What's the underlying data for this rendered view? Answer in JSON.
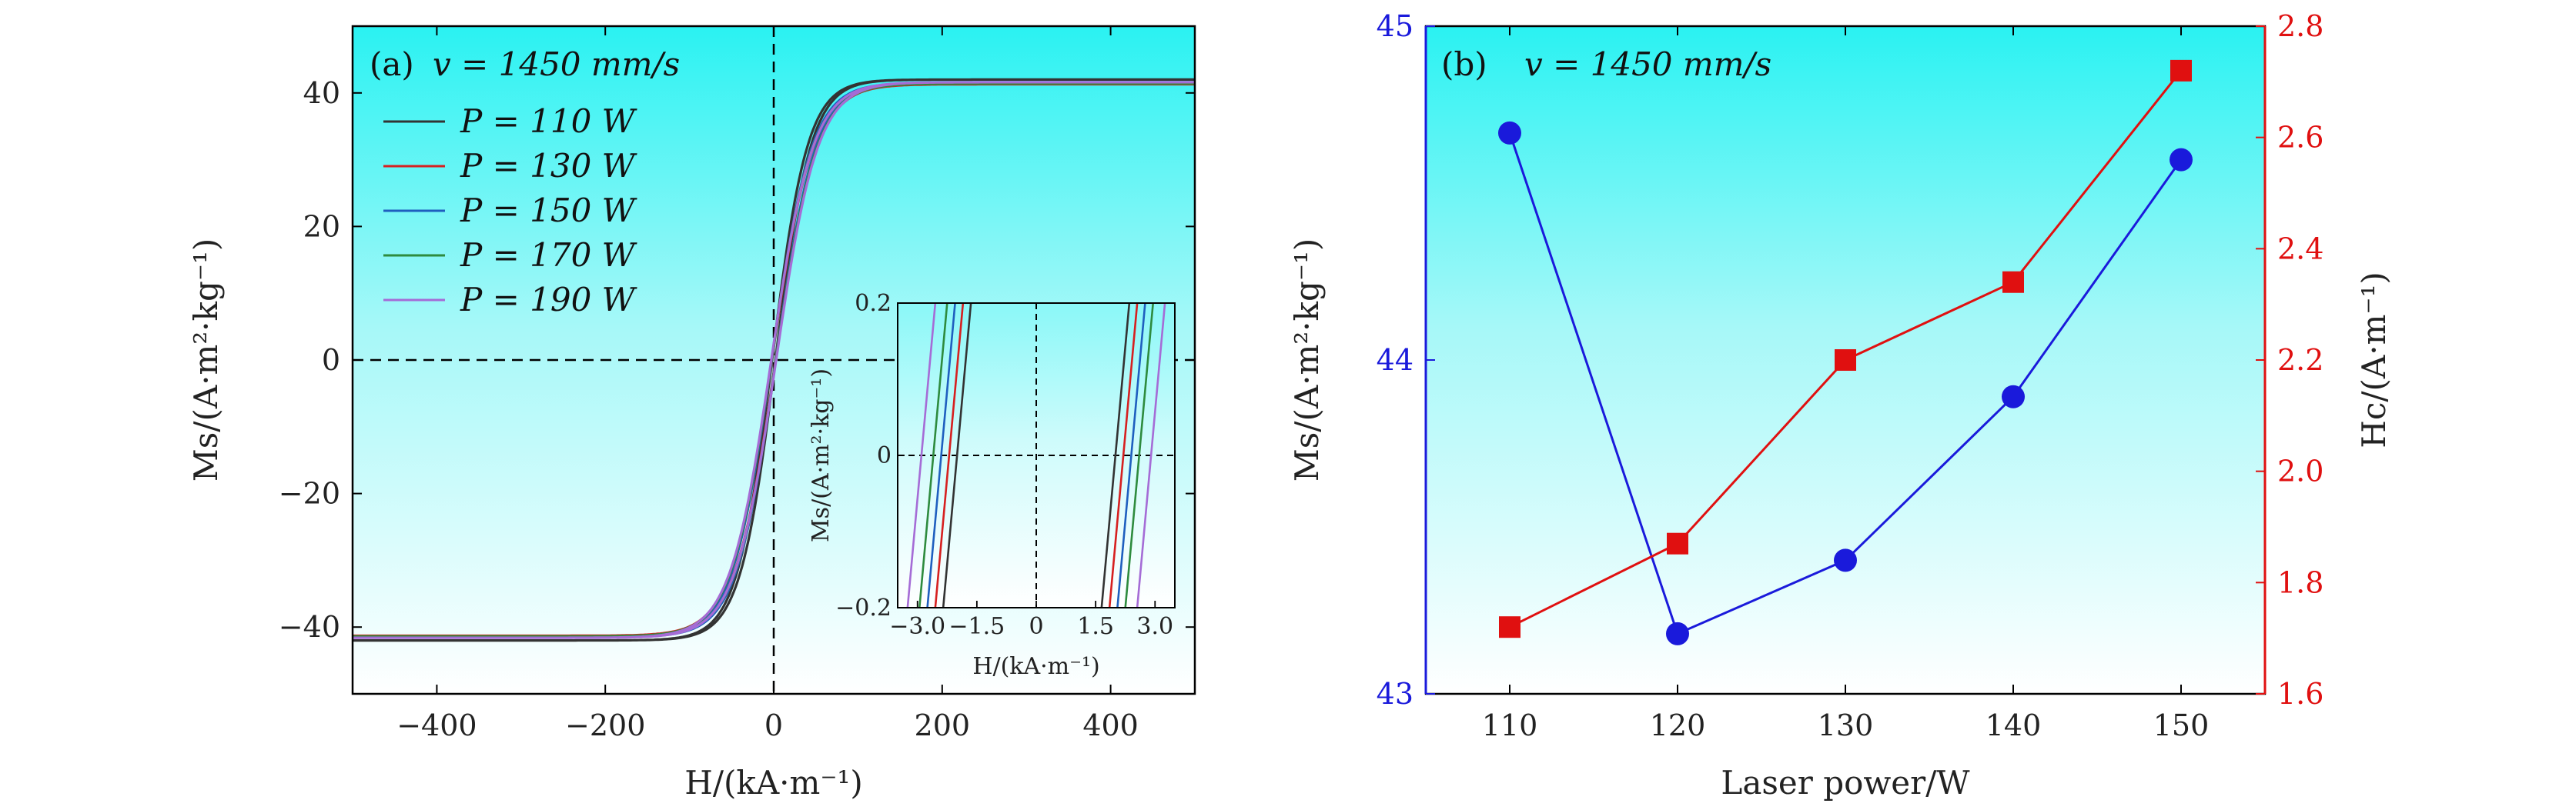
{
  "chart_data": [
    {
      "panel": "(a)",
      "type": "line",
      "annotation": "v = 1450 mm/s",
      "xlabel": "H/(kA·m⁻¹)",
      "ylabel": "Ms/(A·m²·kg⁻¹)",
      "xlim": [
        -500,
        500
      ],
      "ylim": [
        -50,
        50
      ],
      "xticks": [
        -400,
        -200,
        0,
        200,
        400
      ],
      "xtick_labels": [
        "−400",
        "−200",
        "0",
        "200",
        "400"
      ],
      "yticks": [
        -40,
        -20,
        0,
        20,
        40
      ],
      "ytick_labels": [
        "−40",
        "−20",
        "0",
        "20",
        "40"
      ],
      "legend_position": "upper-left",
      "reference_lines": {
        "x": 0,
        "y": 0,
        "style": "dashed"
      },
      "background": "gradient cyan (top) to white (bottom)",
      "series": [
        {
          "name": "P = 110 W",
          "color": "#333333",
          "Ms_sat": 42.0,
          "Hc": 2.0,
          "s": 42
        },
        {
          "name": "P = 130 W",
          "color": "#d62020",
          "Ms_sat": 41.3,
          "Hc": 2.2,
          "s": 48
        },
        {
          "name": "P = 150 W",
          "color": "#1f5fbf",
          "Ms_sat": 41.5,
          "Hc": 2.4,
          "s": 47
        },
        {
          "name": "P = 170 W",
          "color": "#2e8b3e",
          "Ms_sat": 41.4,
          "Hc": 2.6,
          "s": 48
        },
        {
          "name": "P = 190 W",
          "color": "#a56cd6",
          "Ms_sat": 41.6,
          "Hc": 2.9,
          "s": 49
        }
      ],
      "inset": {
        "xlabel": "H/(kA·m⁻¹)",
        "ylabel": "Ms/(A·m²·kg⁻¹)",
        "xlim": [
          -3.5,
          3.5
        ],
        "ylim": [
          -0.2,
          0.2
        ],
        "xticks": [
          -3.0,
          -1.5,
          0,
          1.5,
          3.0
        ],
        "xtick_labels": [
          "−3.0",
          "−1.5",
          "0",
          "1.5",
          "3.0"
        ],
        "yticks": [
          -0.2,
          0,
          0.2
        ],
        "ytick_labels": [
          "−0.2",
          "0",
          "0.2"
        ]
      }
    },
    {
      "panel": "(b)",
      "type": "line",
      "annotation": "v = 1450 mm/s",
      "xlabel": "Laser power/W",
      "ylabel_left": "Ms/(A·m²·kg⁻¹)",
      "ylabel_right": "Hc/(A·m⁻¹)",
      "xlim": [
        105,
        155
      ],
      "xticks": [
        110,
        120,
        130,
        140,
        150
      ],
      "xtick_labels": [
        "110",
        "120",
        "130",
        "140",
        "150"
      ],
      "ylim_left": [
        43,
        45
      ],
      "yticks_left": [
        43,
        44,
        45
      ],
      "ytick_labels_left": [
        "43",
        "44",
        "45"
      ],
      "ylim_right": [
        1.6,
        2.8
      ],
      "yticks_right": [
        1.6,
        1.8,
        2.0,
        2.2,
        2.4,
        2.6,
        2.8
      ],
      "ytick_labels_right": [
        "1.6",
        "1.8",
        "2.0",
        "2.2",
        "2.4",
        "2.6",
        "2.8"
      ],
      "left_color": "#1a1adb",
      "right_color": "#e01010",
      "background": "gradient cyan (top) to white (bottom)",
      "x": [
        110,
        120,
        130,
        140,
        150
      ],
      "series": [
        {
          "axis": "left",
          "marker": "circle",
          "color": "#1a1adb",
          "values": [
            44.68,
            43.18,
            43.4,
            43.89,
            44.6
          ]
        },
        {
          "axis": "right",
          "marker": "square",
          "color": "#e01010",
          "values": [
            1.72,
            1.87,
            2.2,
            2.34,
            2.72
          ]
        }
      ]
    }
  ]
}
